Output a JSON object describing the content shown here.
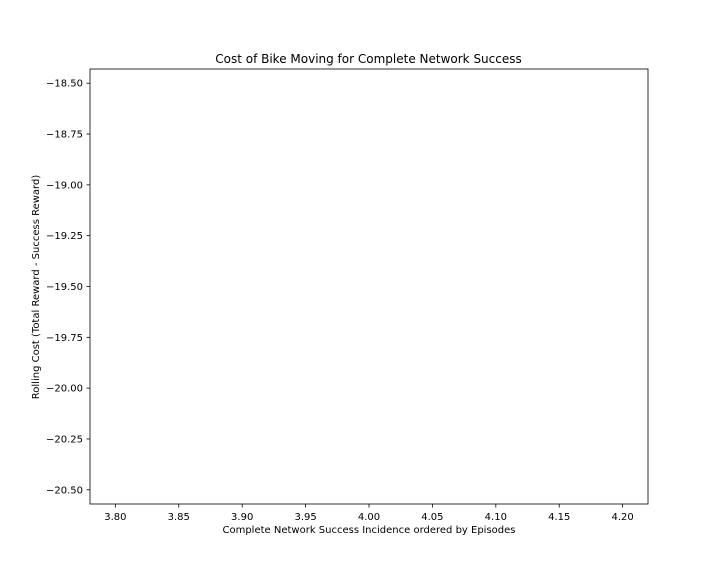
{
  "chart_data": {
    "type": "line",
    "title": "Cost of Bike Moving for Complete Network Success",
    "xlabel": "Complete Network Success Incidence ordered by Episodes",
    "ylabel": "Rolling Cost (Total Reward - Success Reward)",
    "xlim": [
      3.78,
      4.22
    ],
    "ylim": [
      -20.57,
      -18.43
    ],
    "x_ticks": [
      3.8,
      3.85,
      3.9,
      3.95,
      4.0,
      4.05,
      4.1,
      4.15,
      4.2
    ],
    "x_tick_labels": [
      "3.80",
      "3.85",
      "3.90",
      "3.95",
      "4.00",
      "4.05",
      "4.10",
      "4.15",
      "4.20"
    ],
    "y_ticks": [
      -18.5,
      -18.75,
      -19.0,
      -19.25,
      -19.5,
      -19.75,
      -20.0,
      -20.25,
      -20.5
    ],
    "y_tick_labels": [
      "−18.50",
      "−18.75",
      "−19.00",
      "−19.25",
      "−19.50",
      "−19.75",
      "−20.00",
      "−20.25",
      "−20.50"
    ],
    "series": [],
    "grid": false
  }
}
